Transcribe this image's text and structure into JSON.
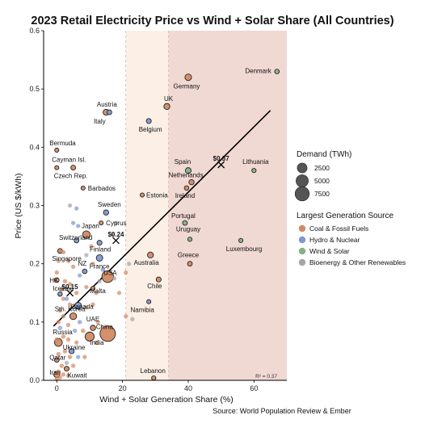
{
  "chart_data": {
    "type": "scatter",
    "title": "2023 Retail Electricity Price vs Wind + Solar Share (All Countries)",
    "xlabel": "Wind + Solar Generation Share (%)",
    "ylabel": "Price (US $/kWh)",
    "source": "Source: World Population Review & Ember",
    "xlim": [
      -4,
      70
    ],
    "ylim": [
      0,
      0.6
    ],
    "xticks": [
      0,
      20,
      40,
      60
    ],
    "yticks": [
      0.0,
      0.1,
      0.2,
      0.3,
      0.4,
      0.5,
      0.6
    ],
    "grid": false,
    "colors": {
      "coal": "#d28a63",
      "hydro": "#7f98cf",
      "wind": "#86b08a",
      "bio": "#a5a5a5",
      "band1": "#fdf3ec",
      "band2": "#f0d8d3",
      "trend": "#000000"
    },
    "bands": [
      {
        "x0": 0,
        "x1": 21
      },
      {
        "x0": 21,
        "x1": 34
      },
      {
        "x0": 34,
        "x1": 70
      }
    ],
    "size_legend": {
      "title": "Demand (TWh)",
      "values": [
        2500,
        5000,
        7500
      ]
    },
    "color_legend": {
      "title": "Largest Generation Source",
      "items": [
        {
          "key": "coal",
          "label": "Coal & Fossil Fuels"
        },
        {
          "key": "hydro",
          "label": "Hydro & Nuclear"
        },
        {
          "key": "wind",
          "label": "Wind & Solar"
        },
        {
          "key": "bio",
          "label": "Bioenergy & Other Renewables"
        }
      ]
    },
    "trendline": {
      "x": [
        -1,
        65
      ],
      "y": [
        0.093,
        0.463
      ]
    },
    "trend_markers": [
      {
        "x": 4,
        "y": 0.15,
        "label": "$0.15"
      },
      {
        "x": 18,
        "y": 0.24,
        "label": "$0.24"
      },
      {
        "x": 50,
        "y": 0.37,
        "label": "$0.37"
      }
    ],
    "r2_label": "R² = 0.37",
    "points": [
      {
        "label": "Denmark",
        "x": 67,
        "y": 0.53,
        "src": "wind",
        "d": 35,
        "lx": -7,
        "ly": 2,
        "anchor": "end"
      },
      {
        "label": "Germany",
        "x": 40,
        "y": 0.52,
        "src": "coal",
        "d": 500,
        "lx": -2,
        "ly": 14,
        "anchor": "middle"
      },
      {
        "label": "UK",
        "x": 33.5,
        "y": 0.47,
        "src": "coal",
        "d": 300,
        "lx": 2,
        "ly": -7,
        "anchor": "middle"
      },
      {
        "label": "Austria",
        "x": 16,
        "y": 0.46,
        "src": "hydro",
        "d": 70,
        "lx": -3,
        "ly": -7,
        "anchor": "middle"
      },
      {
        "label": "Italy",
        "x": 15,
        "y": 0.46,
        "src": "coal",
        "d": 300,
        "lx": -8,
        "ly": 14,
        "anchor": "middle"
      },
      {
        "label": "Belgium",
        "x": 28,
        "y": 0.445,
        "src": "hydro",
        "d": 85,
        "lx": 2,
        "ly": 13,
        "anchor": "middle"
      },
      {
        "label": "Bermuda",
        "x": 0,
        "y": 0.395,
        "src": "coal",
        "d": 5,
        "lx": -9,
        "ly": -6,
        "anchor": "start"
      },
      {
        "label": "Cayman Isl.",
        "x": 0,
        "y": 0.365,
        "src": "coal",
        "d": 5,
        "lx": -6,
        "ly": -7,
        "anchor": "start"
      },
      {
        "label": "Czech Rep.",
        "x": 5,
        "y": 0.365,
        "src": "coal",
        "d": 65,
        "lx": -3,
        "ly": 13,
        "anchor": "middle"
      },
      {
        "label": "Barbados",
        "x": 8,
        "y": 0.33,
        "src": "coal",
        "d": 5,
        "lx": 6,
        "ly": 3,
        "anchor": "start"
      },
      {
        "label": "Spain",
        "x": 40,
        "y": 0.36,
        "src": "wind",
        "d": 250,
        "lx": -7,
        "ly": -8,
        "anchor": "middle"
      },
      {
        "label": "Lithuania",
        "x": 60,
        "y": 0.36,
        "src": "wind",
        "d": 12,
        "lx": 2,
        "ly": -8,
        "anchor": "middle"
      },
      {
        "label": "Netherlands",
        "x": 41,
        "y": 0.34,
        "src": "coal",
        "d": 120,
        "lx": -7,
        "ly": -6,
        "anchor": "middle"
      },
      {
        "label": "Estonia",
        "x": 26,
        "y": 0.318,
        "src": "coal",
        "d": 8,
        "lx": 5,
        "ly": 3,
        "anchor": "start"
      },
      {
        "label": "Ireland",
        "x": 39.5,
        "y": 0.33,
        "src": "coal",
        "d": 30,
        "lx": -2,
        "ly": 12,
        "anchor": "middle"
      },
      {
        "label": "Sweden",
        "x": 15,
        "y": 0.288,
        "src": "hydro",
        "d": 135,
        "lx": 4,
        "ly": -7,
        "anchor": "middle"
      },
      {
        "label": "Japan",
        "x": 9,
        "y": 0.25,
        "src": "coal",
        "d": 950,
        "lx": 5,
        "ly": -8,
        "anchor": "middle"
      },
      {
        "label": "Portugal",
        "x": 39,
        "y": 0.27,
        "src": "wind",
        "d": 50,
        "lx": -2,
        "ly": -6,
        "anchor": "middle"
      },
      {
        "label": "Cyprus",
        "x": 13.5,
        "y": 0.27,
        "src": "coal",
        "d": 5,
        "lx": 6,
        "ly": 3,
        "anchor": "start"
      },
      {
        "label": "Uruguay",
        "x": 40.5,
        "y": 0.242,
        "src": "wind",
        "d": 12,
        "lx": -2,
        "ly": -10,
        "anchor": "middle"
      },
      {
        "label": "Luxembourg",
        "x": 56,
        "y": 0.24,
        "src": "wind",
        "d": 7,
        "lx": 4,
        "ly": 13,
        "anchor": "middle"
      },
      {
        "label": "Switzerland",
        "x": 6,
        "y": 0.24,
        "src": "hydro",
        "d": 60,
        "lx": -1,
        "ly": -1,
        "anchor": "middle"
      },
      {
        "label": "Finland",
        "x": 13,
        "y": 0.236,
        "src": "hydro",
        "d": 85,
        "lx": 1,
        "ly": 11,
        "anchor": "middle"
      },
      {
        "label": "Singapore",
        "x": 1,
        "y": 0.222,
        "src": "coal",
        "d": 55,
        "lx": -10,
        "ly": 12,
        "anchor": "start"
      },
      {
        "label": "Australia",
        "x": 28.5,
        "y": 0.215,
        "src": "coal",
        "d": 270,
        "lx": -5,
        "ly": 12,
        "anchor": "middle"
      },
      {
        "label": "Greece",
        "x": 40.5,
        "y": 0.2,
        "src": "coal",
        "d": 50,
        "lx": -2,
        "ly": -8,
        "anchor": "middle"
      },
      {
        "label": "France",
        "x": 13,
        "y": 0.21,
        "src": "hydro",
        "d": 470,
        "lx": 0,
        "ly": 13,
        "anchor": "middle"
      },
      {
        "label": "NZ",
        "x": 8.5,
        "y": 0.187,
        "src": "hydro",
        "d": 45,
        "lx": -3,
        "ly": -7,
        "anchor": "middle"
      },
      {
        "label": "USA",
        "x": 15.5,
        "y": 0.178,
        "src": "coal",
        "d": 4200,
        "lx": 3,
        "ly": -2,
        "anchor": "middle"
      },
      {
        "label": "HK",
        "x": 0,
        "y": 0.172,
        "src": "coal",
        "d": 45,
        "lx": -9,
        "ly": 3,
        "anchor": "start"
      },
      {
        "label": "Chile",
        "x": 31,
        "y": 0.173,
        "src": "coal",
        "d": 80,
        "lx": -5,
        "ly": 11,
        "anchor": "middle"
      },
      {
        "label": "Malta",
        "x": 11,
        "y": 0.158,
        "src": "coal",
        "d": 3,
        "lx": 6,
        "ly": 6,
        "anchor": "middle"
      },
      {
        "label": "Iceland",
        "x": 1,
        "y": 0.148,
        "src": "hydro",
        "d": 20,
        "lx": -9,
        "ly": -4,
        "anchor": "start"
      },
      {
        "label": "Canada",
        "x": 6.5,
        "y": 0.128,
        "src": "hydro",
        "d": 600,
        "lx": 5,
        "ly": 4,
        "anchor": "middle"
      },
      {
        "label": "Namibia",
        "x": 28,
        "y": 0.135,
        "src": "hydro",
        "d": 5,
        "lx": -8,
        "ly": 13,
        "anchor": "middle"
      },
      {
        "label": "Sth. Korea",
        "x": 5,
        "y": 0.11,
        "src": "coal",
        "d": 600,
        "lx": -4,
        "ly": -6,
        "anchor": "middle"
      },
      {
        "label": "UAE",
        "x": 11,
        "y": 0.09,
        "src": "coal",
        "d": 150,
        "lx": 0,
        "ly": -8,
        "anchor": "middle"
      },
      {
        "label": "China",
        "x": 15.5,
        "y": 0.08,
        "src": "coal",
        "d": 9300,
        "lx": -4,
        "ly": -6,
        "anchor": "middle"
      },
      {
        "label": "Russia",
        "x": 0.5,
        "y": 0.065,
        "src": "coal",
        "d": 1100,
        "lx": -7,
        "ly": -10,
        "anchor": "start"
      },
      {
        "label": "India",
        "x": 10,
        "y": 0.075,
        "src": "coal",
        "d": 1900,
        "lx": 9,
        "ly": 10,
        "anchor": "middle"
      },
      {
        "label": "Ukraine",
        "x": 4.5,
        "y": 0.05,
        "src": "hydro",
        "d": 110,
        "lx": 3,
        "ly": -2,
        "anchor": "middle"
      },
      {
        "label": "Qatar",
        "x": 0,
        "y": 0.035,
        "src": "coal",
        "d": 50,
        "lx": -9,
        "ly": 0,
        "anchor": "start"
      },
      {
        "label": "Kuwait",
        "x": 3,
        "y": 0.02,
        "src": "coal",
        "d": 75,
        "lx": 1,
        "ly": 11,
        "anchor": "start"
      },
      {
        "label": "Iran",
        "x": 0,
        "y": 0.01,
        "src": "coal",
        "d": 350,
        "lx": -9,
        "ly": 0,
        "anchor": "start"
      },
      {
        "label": "Lebanon",
        "x": 29.5,
        "y": 0.004,
        "src": "coal",
        "d": 14,
        "lx": -1,
        "ly": -6,
        "anchor": "middle"
      },
      {
        "label": "",
        "x": 5,
        "y": 0.27,
        "src": "hydro",
        "d": 10
      },
      {
        "label": "",
        "x": 6.5,
        "y": 0.265,
        "src": "hydro",
        "d": 10
      },
      {
        "label": "",
        "x": 4,
        "y": 0.3,
        "src": "bio",
        "d": 8
      },
      {
        "label": "",
        "x": 6,
        "y": 0.295,
        "src": "hydro",
        "d": 8
      },
      {
        "label": "",
        "x": 2,
        "y": 0.22,
        "src": "coal",
        "d": 10
      },
      {
        "label": "",
        "x": 3.5,
        "y": 0.205,
        "src": "coal",
        "d": 10
      },
      {
        "label": "",
        "x": 0.5,
        "y": 0.205,
        "src": "coal",
        "d": 10
      },
      {
        "label": "",
        "x": 5,
        "y": 0.195,
        "src": "coal",
        "d": 10
      },
      {
        "label": "",
        "x": 9,
        "y": 0.215,
        "src": "bio",
        "d": 10
      },
      {
        "label": "",
        "x": 11,
        "y": 0.2,
        "src": "coal",
        "d": 10
      },
      {
        "label": "",
        "x": 10.5,
        "y": 0.23,
        "src": "coal",
        "d": 10
      },
      {
        "label": "",
        "x": 7,
        "y": 0.18,
        "src": "hydro",
        "d": 10
      },
      {
        "label": "",
        "x": 2.5,
        "y": 0.17,
        "src": "coal",
        "d": 20
      },
      {
        "label": "",
        "x": 4,
        "y": 0.165,
        "src": "coal",
        "d": 20
      },
      {
        "label": "",
        "x": 1.5,
        "y": 0.155,
        "src": "coal",
        "d": 10
      },
      {
        "label": "",
        "x": 6,
        "y": 0.15,
        "src": "coal",
        "d": 20
      },
      {
        "label": "",
        "x": 9,
        "y": 0.16,
        "src": "coal",
        "d": 10
      },
      {
        "label": "",
        "x": 12,
        "y": 0.15,
        "src": "coal",
        "d": 20
      },
      {
        "label": "",
        "x": 13,
        "y": 0.17,
        "src": "bio",
        "d": 10
      },
      {
        "label": "",
        "x": 14,
        "y": 0.19,
        "src": "hydro",
        "d": 20
      },
      {
        "label": "",
        "x": 17.5,
        "y": 0.175,
        "src": "bio",
        "d": 10
      },
      {
        "label": "",
        "x": 21,
        "y": 0.185,
        "src": "coal",
        "d": 10
      },
      {
        "label": "",
        "x": 19,
        "y": 0.15,
        "src": "coal",
        "d": 10
      },
      {
        "label": "",
        "x": 22,
        "y": 0.2,
        "src": "bio",
        "d": 5
      },
      {
        "label": "",
        "x": 18,
        "y": 0.27,
        "src": "bio",
        "d": 10
      },
      {
        "label": "",
        "x": 17,
        "y": 0.25,
        "src": "coal",
        "d": 10
      },
      {
        "label": "",
        "x": 2,
        "y": 0.14,
        "src": "coal",
        "d": 10
      },
      {
        "label": "",
        "x": 4,
        "y": 0.13,
        "src": "coal",
        "d": 20
      },
      {
        "label": "",
        "x": 9,
        "y": 0.125,
        "src": "coal",
        "d": 10
      },
      {
        "label": "",
        "x": 11,
        "y": 0.13,
        "src": "coal",
        "d": 20
      },
      {
        "label": "",
        "x": 2,
        "y": 0.11,
        "src": "coal",
        "d": 20
      },
      {
        "label": "",
        "x": 3.5,
        "y": 0.095,
        "src": "coal",
        "d": 10
      },
      {
        "label": "",
        "x": 7,
        "y": 0.1,
        "src": "hydro",
        "d": 20
      },
      {
        "label": "",
        "x": 8,
        "y": 0.085,
        "src": "coal",
        "d": 20
      },
      {
        "label": "",
        "x": 12.5,
        "y": 0.1,
        "src": "coal",
        "d": 10
      },
      {
        "label": "",
        "x": 21,
        "y": 0.11,
        "src": "coal",
        "d": 10
      },
      {
        "label": "",
        "x": 23,
        "y": 0.105,
        "src": "bio",
        "d": 10
      },
      {
        "label": "",
        "x": 1,
        "y": 0.09,
        "src": "hydro",
        "d": 20
      },
      {
        "label": "",
        "x": 5.5,
        "y": 0.085,
        "src": "hydro",
        "d": 10
      },
      {
        "label": "",
        "x": 0,
        "y": 0.07,
        "src": "coal",
        "d": 20
      },
      {
        "label": "",
        "x": 2,
        "y": 0.075,
        "src": "coal",
        "d": 20
      },
      {
        "label": "",
        "x": 3.5,
        "y": 0.07,
        "src": "coal",
        "d": 20
      },
      {
        "label": "",
        "x": 6,
        "y": 0.065,
        "src": "coal",
        "d": 10
      },
      {
        "label": "",
        "x": 12,
        "y": 0.065,
        "src": "coal",
        "d": 20
      },
      {
        "label": "",
        "x": 14,
        "y": 0.09,
        "src": "coal",
        "d": 20
      },
      {
        "label": "",
        "x": 0.5,
        "y": 0.045,
        "src": "coal",
        "d": 20
      },
      {
        "label": "",
        "x": 2.5,
        "y": 0.05,
        "src": "coal",
        "d": 20
      },
      {
        "label": "",
        "x": 4,
        "y": 0.04,
        "src": "coal",
        "d": 10
      },
      {
        "label": "",
        "x": 6.5,
        "y": 0.04,
        "src": "hydro",
        "d": 10
      },
      {
        "label": "",
        "x": 8.5,
        "y": 0.04,
        "src": "coal",
        "d": 10
      },
      {
        "label": "",
        "x": 1.5,
        "y": 0.025,
        "src": "coal",
        "d": 20
      },
      {
        "label": "",
        "x": 3,
        "y": 0.03,
        "src": "bio",
        "d": 10
      },
      {
        "label": "",
        "x": 5,
        "y": 0.025,
        "src": "coal",
        "d": 20
      },
      {
        "label": "",
        "x": 0.5,
        "y": 0.015,
        "src": "coal",
        "d": 20
      },
      {
        "label": "",
        "x": 2,
        "y": 0.01,
        "src": "coal",
        "d": 10
      },
      {
        "label": "",
        "x": 0,
        "y": 0.002,
        "src": "coal",
        "d": 10
      },
      {
        "label": "",
        "x": 1,
        "y": 0.005,
        "src": "coal",
        "d": 10
      },
      {
        "label": "",
        "x": 3.5,
        "y": 0.008,
        "src": "coal",
        "d": 10
      },
      {
        "label": "",
        "x": 0.5,
        "y": 0.1,
        "src": "coal",
        "d": 20
      },
      {
        "label": "",
        "x": 1,
        "y": 0.12,
        "src": "coal",
        "d": 20
      },
      {
        "label": "",
        "x": 3,
        "y": 0.14,
        "src": "hydro",
        "d": 10
      },
      {
        "label": "",
        "x": 0,
        "y": 0.185,
        "src": "coal",
        "d": 10
      }
    ]
  }
}
